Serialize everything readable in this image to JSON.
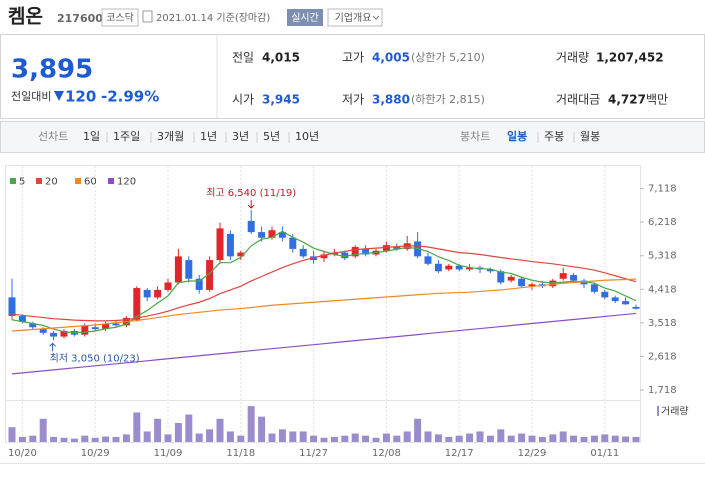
{
  "header": {
    "name": "켐온",
    "code": "217600",
    "market": "코스닥",
    "date": "2021.01.14 기준(장마감)",
    "realtime": "실시간",
    "overview": "기업개요"
  },
  "quote": {
    "price": "3,895",
    "change_label": "전일대비",
    "change": "120",
    "change_pct": "-2.99%"
  },
  "stats": {
    "prev": {
      "label": "전일",
      "value": "4,015"
    },
    "high": {
      "label": "고가",
      "value": "4,005",
      "note": "(상한가 5,210)"
    },
    "volume": {
      "label": "거래량",
      "value": "1,207,452"
    },
    "open": {
      "label": "시가",
      "value": "3,945"
    },
    "low": {
      "label": "저가",
      "value": "3,880",
      "note": "(하한가 2,815)"
    },
    "amount": {
      "label": "거래대금",
      "value": "4,727",
      "unit": "백만"
    }
  },
  "tabs": {
    "line_label": "선차트",
    "line": [
      "1일",
      "1주일",
      "3개월",
      "1년",
      "3년",
      "5년",
      "10년"
    ],
    "candle_label": "봉차트",
    "candle": [
      "일봉",
      "주봉",
      "월봉"
    ]
  },
  "chart_data": {
    "type": "candlestick",
    "categories": [
      null,
      "10/20",
      null,
      null,
      null,
      null,
      null,
      null,
      "10/29",
      null,
      null,
      null,
      null,
      null,
      null,
      "11/09",
      null,
      null,
      null,
      null,
      null,
      null,
      "11/18",
      null,
      null,
      null,
      null,
      null,
      null,
      "11/27",
      null,
      null,
      null,
      null,
      null,
      null,
      "12/08",
      null,
      null,
      null,
      null,
      null,
      null,
      "12/17",
      null,
      null,
      null,
      null,
      null,
      null,
      "12/29",
      null,
      null,
      null,
      null,
      null,
      null,
      "01/11",
      null,
      null,
      null
    ],
    "open": [
      4200,
      3700,
      3500,
      3350,
      3250,
      3150,
      3300,
      3200,
      3400,
      3350,
      3500,
      3450,
      3600,
      4400,
      4200,
      4400,
      4600,
      5200,
      4700,
      4400,
      5200,
      5900,
      5300,
      6250,
      5950,
      5800,
      5950,
      5800,
      5500,
      5300,
      5250,
      5350,
      5400,
      5300,
      5500,
      5350,
      5450,
      5550,
      5500,
      5700,
      5300,
      5100,
      4950,
      5050,
      4950,
      5000,
      4950,
      4900,
      4650,
      4700,
      4500,
      4550,
      4500,
      4700,
      4800,
      4650,
      4550,
      4350,
      4200,
      4100,
      3945
    ],
    "high": [
      4700,
      3750,
      3550,
      3400,
      3300,
      3350,
      3350,
      3500,
      3500,
      3550,
      3600,
      3700,
      4500,
      4450,
      4500,
      4700,
      5500,
      5300,
      4800,
      5300,
      6200,
      6000,
      5450,
      6540,
      6100,
      6100,
      6100,
      5900,
      5600,
      5450,
      5450,
      5500,
      5450,
      5600,
      5600,
      5500,
      5700,
      5650,
      5850,
      5950,
      5400,
      5200,
      5100,
      5100,
      5100,
      5050,
      5000,
      4950,
      4800,
      4750,
      4600,
      4650,
      4700,
      5000,
      4850,
      4700,
      4600,
      4400,
      4250,
      4200,
      4005
    ],
    "low": [
      3600,
      3500,
      3350,
      3200,
      3050,
      3100,
      3150,
      3150,
      3300,
      3300,
      3400,
      3400,
      3550,
      4100,
      4150,
      4350,
      4550,
      4600,
      4300,
      4350,
      5100,
      5200,
      5200,
      5900,
      5700,
      5750,
      5700,
      5400,
      5250,
      5100,
      5150,
      5300,
      5200,
      5250,
      5300,
      5300,
      5400,
      5450,
      5450,
      5250,
      5050,
      4850,
      4900,
      4900,
      4900,
      4850,
      4850,
      4550,
      4600,
      4450,
      4400,
      4450,
      4450,
      4650,
      4600,
      4450,
      4300,
      4150,
      4050,
      4000,
      3880
    ],
    "close": [
      3700,
      3550,
      3400,
      3250,
      3150,
      3300,
      3200,
      3450,
      3350,
      3500,
      3450,
      3650,
      4450,
      4200,
      4400,
      4600,
      5300,
      4700,
      4400,
      5200,
      6050,
      5300,
      5400,
      5950,
      5800,
      6000,
      5800,
      5500,
      5300,
      5200,
      5350,
      5400,
      5250,
      5550,
      5350,
      5450,
      5600,
      5500,
      5650,
      5300,
      5100,
      4900,
      5050,
      4950,
      5000,
      4950,
      4900,
      4600,
      4750,
      4500,
      4550,
      4500,
      4650,
      4850,
      4650,
      4550,
      4350,
      4200,
      4100,
      4015,
      3895
    ],
    "up_color": "#e0262b",
    "down_color": "#2f6fe0",
    "series": [
      {
        "name": "5",
        "color": "#4aa84a",
        "values": [
          3600,
          3550,
          3500,
          3450,
          3350,
          3280,
          3260,
          3270,
          3300,
          3360,
          3400,
          3480,
          3690,
          3850,
          4050,
          4240,
          4590,
          4640,
          4640,
          4840,
          5130,
          5130,
          5270,
          5580,
          5760,
          5810,
          5970,
          5810,
          5680,
          5520,
          5430,
          5350,
          5300,
          5350,
          5380,
          5400,
          5440,
          5490,
          5540,
          5510,
          5430,
          5290,
          5190,
          5060,
          5000,
          4970,
          4960,
          4880,
          4840,
          4740,
          4660,
          4610,
          4590,
          4610,
          4630,
          4620,
          4580,
          4450,
          4370,
          4240,
          4110
        ]
      },
      {
        "name": "20",
        "color": "#e0453f",
        "values": [
          3750,
          3720,
          3690,
          3660,
          3630,
          3610,
          3590,
          3580,
          3570,
          3570,
          3580,
          3600,
          3650,
          3700,
          3760,
          3830,
          3920,
          4000,
          4070,
          4170,
          4300,
          4400,
          4500,
          4640,
          4760,
          4880,
          5000,
          5100,
          5190,
          5260,
          5330,
          5390,
          5430,
          5480,
          5500,
          5520,
          5540,
          5560,
          5580,
          5580,
          5550,
          5500,
          5450,
          5400,
          5380,
          5350,
          5310,
          5270,
          5230,
          5200,
          5160,
          5130,
          5100,
          5060,
          5020,
          4980,
          4930,
          4860,
          4780,
          4700,
          4620
        ]
      },
      {
        "name": "60",
        "color": "#f08a1c",
        "values": [
          3300,
          3320,
          3340,
          3360,
          3380,
          3400,
          3420,
          3440,
          3460,
          3490,
          3520,
          3550,
          3580,
          3620,
          3660,
          3700,
          3740,
          3770,
          3800,
          3830,
          3860,
          3880,
          3900,
          3930,
          3960,
          3990,
          4010,
          4030,
          4050,
          4070,
          4090,
          4110,
          4130,
          4150,
          4170,
          4190,
          4210,
          4230,
          4250,
          4270,
          4290,
          4310,
          4320,
          4330,
          4340,
          4360,
          4380,
          4400,
          4430,
          4460,
          4490,
          4520,
          4550,
          4580,
          4600,
          4620,
          4640,
          4660,
          4670,
          4680,
          4690
        ]
      },
      {
        "name": "120",
        "color": "#8a4fc4",
        "values": [
          2150,
          2177,
          2204,
          2231,
          2258,
          2285,
          2312,
          2339,
          2366,
          2393,
          2420,
          2447,
          2474,
          2501,
          2528,
          2555,
          2582,
          2609,
          2636,
          2663,
          2690,
          2717,
          2744,
          2771,
          2798,
          2825,
          2852,
          2879,
          2906,
          2933,
          2960,
          2987,
          3014,
          3041,
          3068,
          3095,
          3122,
          3149,
          3176,
          3203,
          3230,
          3257,
          3284,
          3311,
          3338,
          3365,
          3392,
          3419,
          3446,
          3473,
          3500,
          3527,
          3554,
          3581,
          3608,
          3635,
          3662,
          3689,
          3716,
          3743,
          3770
        ]
      }
    ],
    "volume": {
      "name": "거래량",
      "color": "#9b8ccc",
      "ylim": [
        0,
        9000000
      ],
      "values": [
        3500000,
        1200000,
        1500000,
        5500000,
        1200000,
        1000000,
        800000,
        1500000,
        1000000,
        1300000,
        1200000,
        1800000,
        7000000,
        2500000,
        5500000,
        1800000,
        4500000,
        6500000,
        2000000,
        3000000,
        5500000,
        2500000,
        1500000,
        8500000,
        6000000,
        2000000,
        3000000,
        2500000,
        2500000,
        1500000,
        1000000,
        1200000,
        1500000,
        2000000,
        1500000,
        1000000,
        2000000,
        1500000,
        2500000,
        5500000,
        2500000,
        1800000,
        1200000,
        1500000,
        2000000,
        2500000,
        1500000,
        3000000,
        1500000,
        2000000,
        1500000,
        1200000,
        1800000,
        2500000,
        1500000,
        1200000,
        1500000,
        1800000,
        1500000,
        1300000,
        1207452
      ]
    },
    "ylim": [
      1450,
      7400
    ],
    "yticks": [
      {
        "value": 7118,
        "label": "7,118"
      },
      {
        "value": 6218,
        "label": "6,218"
      },
      {
        "value": 5318,
        "label": "5,318"
      },
      {
        "value": 4418,
        "label": "4,418"
      },
      {
        "value": 3518,
        "label": "3,518"
      },
      {
        "value": 2618,
        "label": "2,618"
      },
      {
        "value": 1718,
        "label": "1,718"
      }
    ],
    "annotations": {
      "high": "최고 6,540 (11/19)",
      "low": "최저 3,050 (10/23)"
    }
  }
}
